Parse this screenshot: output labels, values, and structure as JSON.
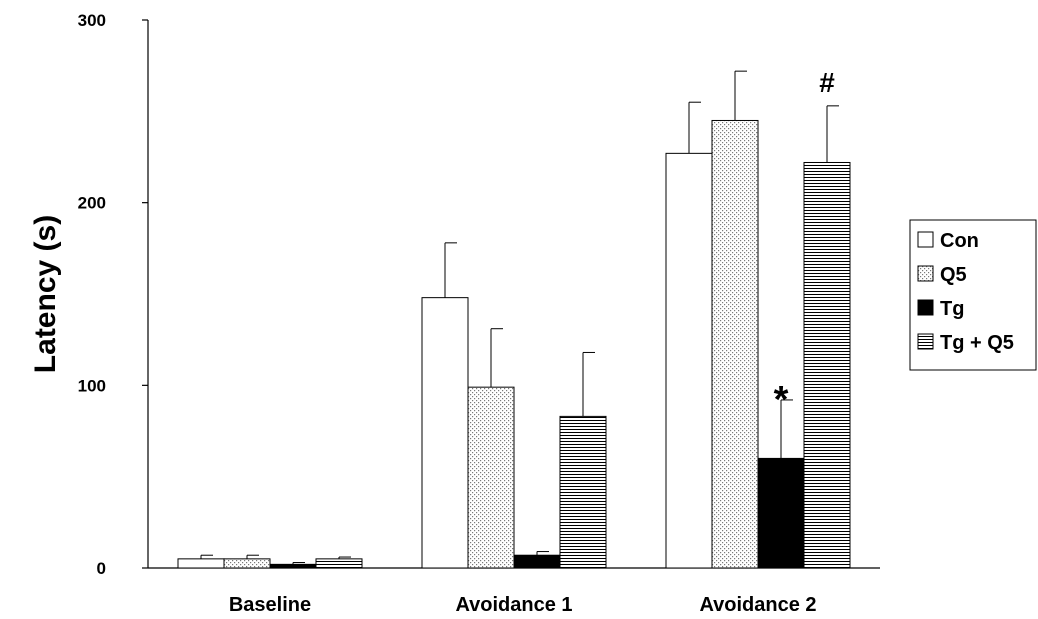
{
  "chart_data": {
    "type": "bar",
    "title": "",
    "xlabel": "",
    "ylabel": "Latency (s)",
    "ylim": [
      0,
      300
    ],
    "yticks": [
      "0",
      "100",
      "200",
      "300"
    ],
    "categories": [
      "Baseline",
      "Avoidance 1",
      "Avoidance 2"
    ],
    "series": [
      {
        "name": "Con",
        "values": [
          5,
          148,
          227
        ],
        "errors": [
          2,
          30,
          28
        ],
        "fill": "white"
      },
      {
        "name": "Q5",
        "values": [
          5,
          99,
          245
        ],
        "errors": [
          2,
          32,
          27
        ],
        "fill": "dots"
      },
      {
        "name": "Tg",
        "values": [
          2,
          7,
          60
        ],
        "errors": [
          1,
          2,
          32
        ],
        "fill": "black"
      },
      {
        "name": "Tg + Q5",
        "values": [
          5,
          83,
          222
        ],
        "errors": [
          1,
          35,
          31
        ],
        "fill": "hlines"
      }
    ],
    "annotations": [
      {
        "text": "*",
        "category": "Avoidance 2",
        "series": "Tg"
      },
      {
        "text": "#",
        "category": "Avoidance 2",
        "series": "Tg + Q5"
      }
    ],
    "legend": {
      "placement": "right"
    },
    "grid": false
  }
}
